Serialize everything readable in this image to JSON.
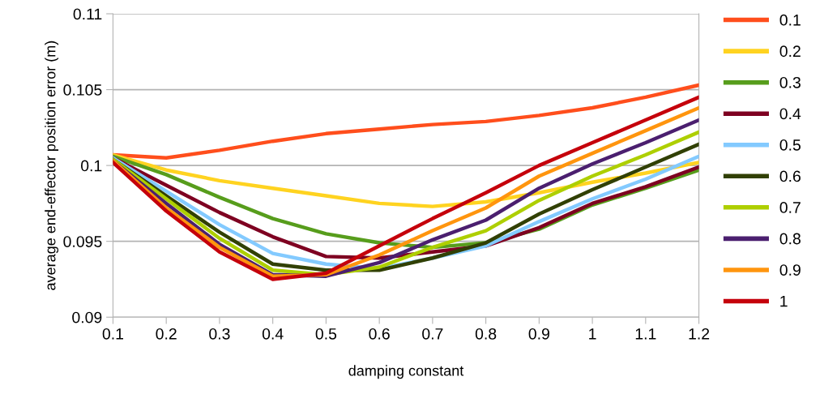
{
  "chart_data": {
    "type": "line",
    "xlabel": "damping constant",
    "ylabel": "average end-effector position error (m)",
    "x": [
      0.1,
      0.2,
      0.3,
      0.4,
      0.5,
      0.6,
      0.7,
      0.8,
      0.9,
      1,
      1.1,
      1.2
    ],
    "xlim": [
      0.1,
      1.2
    ],
    "xticks": [
      0.1,
      0.2,
      0.3,
      0.4,
      0.5,
      0.6,
      0.7,
      0.8,
      0.9,
      1,
      1.1,
      1.2
    ],
    "ylim": [
      0.09,
      0.11
    ],
    "yticks": [
      0.09,
      0.095,
      0.1,
      0.105,
      0.11
    ],
    "grid": "y",
    "legend": "right",
    "marker": "none",
    "line_style": "solid",
    "series": [
      {
        "name": "0.1",
        "color": "#ff4e1c",
        "values": [
          0.1007,
          0.1005,
          0.101,
          0.1016,
          0.1021,
          0.1024,
          0.1027,
          0.1029,
          0.1033,
          0.1038,
          0.1045,
          0.1053
        ]
      },
      {
        "name": "0.2",
        "color": "#ffd320",
        "values": [
          0.1007,
          0.0997,
          0.099,
          0.0985,
          0.098,
          0.0975,
          0.0973,
          0.0976,
          0.0982,
          0.0989,
          0.0995,
          0.1002
        ]
      },
      {
        "name": "0.3",
        "color": "#579d1c",
        "values": [
          0.1006,
          0.0994,
          0.0979,
          0.0965,
          0.0955,
          0.0949,
          0.0946,
          0.0949,
          0.0958,
          0.0974,
          0.0985,
          0.0997
        ]
      },
      {
        "name": "0.4",
        "color": "#7e0021",
        "values": [
          0.1005,
          0.0987,
          0.0969,
          0.0953,
          0.094,
          0.0939,
          0.0943,
          0.0947,
          0.0959,
          0.0975,
          0.0986,
          0.0999
        ]
      },
      {
        "name": "0.5",
        "color": "#83caff",
        "values": [
          0.1005,
          0.0983,
          0.0961,
          0.0942,
          0.0935,
          0.0932,
          0.0939,
          0.0947,
          0.0963,
          0.0978,
          0.0991,
          0.1006
        ]
      },
      {
        "name": "0.6",
        "color": "#314004",
        "values": [
          0.1004,
          0.098,
          0.0956,
          0.0935,
          0.0931,
          0.0931,
          0.0939,
          0.0949,
          0.0968,
          0.0984,
          0.0999,
          0.1014
        ]
      },
      {
        "name": "0.7",
        "color": "#aecf00",
        "values": [
          0.1004,
          0.0978,
          0.0952,
          0.0931,
          0.0928,
          0.0933,
          0.0946,
          0.0957,
          0.0977,
          0.0993,
          0.1007,
          0.1022
        ]
      },
      {
        "name": "0.8",
        "color": "#4b1f6f",
        "values": [
          0.1003,
          0.0975,
          0.0948,
          0.0928,
          0.0927,
          0.0936,
          0.0951,
          0.0964,
          0.0985,
          0.1001,
          0.1015,
          0.103
        ]
      },
      {
        "name": "0.9",
        "color": "#ff950e",
        "values": [
          0.1003,
          0.0972,
          0.0946,
          0.0927,
          0.0928,
          0.0941,
          0.0957,
          0.0972,
          0.0993,
          0.1008,
          0.1023,
          0.1038
        ]
      },
      {
        "name": "1",
        "color": "#c5000b",
        "values": [
          0.1002,
          0.097,
          0.0943,
          0.0925,
          0.0929,
          0.0947,
          0.0965,
          0.0982,
          0.1,
          0.1015,
          0.103,
          0.1045
        ]
      }
    ]
  }
}
